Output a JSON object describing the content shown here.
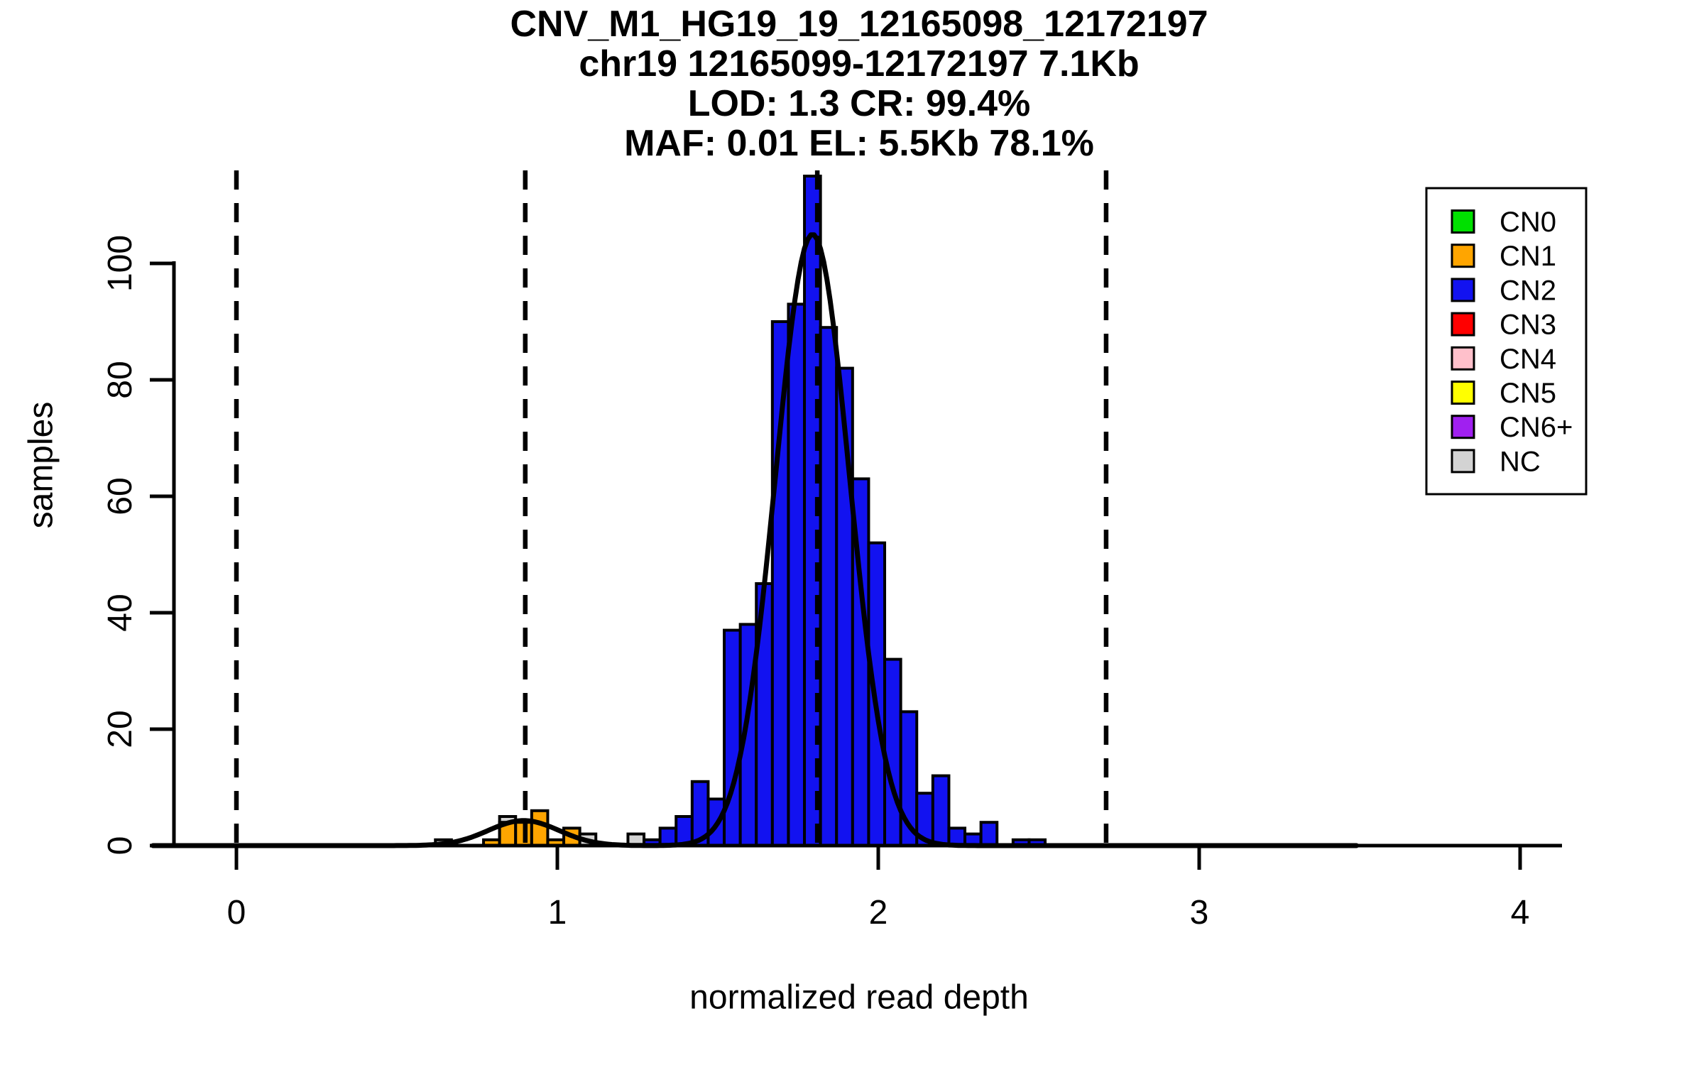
{
  "header": {
    "line1": "CNV_M1_HG19_19_12165098_12172197",
    "line2": "chr19 12165099-12172197 7.1Kb",
    "line3": "LOD: 1.3 CR: 99.4%",
    "line4": "MAF: 0.01 EL: 5.5Kb 78.1%"
  },
  "chart_data": {
    "type": "bar",
    "subtype": "histogram-with-density",
    "title": "CNV_M1_HG19_19_12165098_12172197 | chr19 12165099-12172197 7.1Kb | LOD: 1.3 CR: 99.4% | MAF: 0.01 EL: 5.5Kb 78.1%",
    "xlabel": "normalized read depth",
    "ylabel": "samples",
    "xlim": [
      -0.25,
      4.15
    ],
    "ylim": [
      0,
      116
    ],
    "x_ticks": [
      0,
      1,
      2,
      3,
      4
    ],
    "y_ticks": [
      0,
      20,
      40,
      60,
      80,
      100
    ],
    "grid": "off",
    "legend_position": "top-right",
    "bin_width": 0.05,
    "class_colors": {
      "CN0": "#00E000",
      "CN1": "#FFA500",
      "CN2": "#1212F0",
      "CN3": "#FF0000",
      "CN4": "#FFC0CB",
      "CN5": "#FFFF00",
      "CN6+": "#A020F0",
      "NC": "#D3D3D3"
    },
    "legend_entries": [
      "CN0",
      "CN1",
      "CN2",
      "CN3",
      "CN4",
      "CN5",
      "CN6+",
      "NC"
    ],
    "bars": [
      {
        "class": "NC",
        "x0": 0.62,
        "x1": 0.67,
        "count": 1
      },
      {
        "class": "CN1",
        "x0": 0.77,
        "x1": 0.82,
        "count": 1
      },
      {
        "class": "NC",
        "x0": 0.82,
        "x1": 0.87,
        "count": 5
      },
      {
        "class": "CN1",
        "x0": 0.82,
        "x1": 0.87,
        "count": 4
      },
      {
        "class": "CN1",
        "x0": 0.87,
        "x1": 0.92,
        "count": 4
      },
      {
        "class": "CN1",
        "x0": 0.92,
        "x1": 0.97,
        "count": 6
      },
      {
        "class": "CN1",
        "x0": 0.97,
        "x1": 1.02,
        "count": 1
      },
      {
        "class": "CN1",
        "x0": 1.02,
        "x1": 1.07,
        "count": 3
      },
      {
        "class": "NC",
        "x0": 1.07,
        "x1": 1.12,
        "count": 2
      },
      {
        "class": "NC",
        "x0": 1.22,
        "x1": 1.27,
        "count": 2
      },
      {
        "class": "CN2",
        "x0": 1.27,
        "x1": 1.32,
        "count": 1
      },
      {
        "class": "CN2",
        "x0": 1.32,
        "x1": 1.37,
        "count": 3
      },
      {
        "class": "CN2",
        "x0": 1.37,
        "x1": 1.42,
        "count": 5
      },
      {
        "class": "CN2",
        "x0": 1.42,
        "x1": 1.47,
        "count": 11
      },
      {
        "class": "CN2",
        "x0": 1.47,
        "x1": 1.52,
        "count": 8
      },
      {
        "class": "CN2",
        "x0": 1.52,
        "x1": 1.57,
        "count": 37
      },
      {
        "class": "CN2",
        "x0": 1.57,
        "x1": 1.62,
        "count": 38
      },
      {
        "class": "CN2",
        "x0": 1.62,
        "x1": 1.67,
        "count": 45
      },
      {
        "class": "CN2",
        "x0": 1.67,
        "x1": 1.72,
        "count": 90
      },
      {
        "class": "CN2",
        "x0": 1.72,
        "x1": 1.77,
        "count": 93
      },
      {
        "class": "CN2",
        "x0": 1.77,
        "x1": 1.82,
        "count": 115
      },
      {
        "class": "CN2",
        "x0": 1.82,
        "x1": 1.87,
        "count": 89
      },
      {
        "class": "CN2",
        "x0": 1.87,
        "x1": 1.92,
        "count": 82
      },
      {
        "class": "CN2",
        "x0": 1.92,
        "x1": 1.97,
        "count": 63
      },
      {
        "class": "CN2",
        "x0": 1.97,
        "x1": 2.02,
        "count": 52
      },
      {
        "class": "CN2",
        "x0": 2.02,
        "x1": 2.07,
        "count": 32
      },
      {
        "class": "CN2",
        "x0": 2.07,
        "x1": 2.12,
        "count": 23
      },
      {
        "class": "CN2",
        "x0": 2.12,
        "x1": 2.17,
        "count": 9
      },
      {
        "class": "CN2",
        "x0": 2.17,
        "x1": 2.22,
        "count": 12
      },
      {
        "class": "CN2",
        "x0": 2.22,
        "x1": 2.27,
        "count": 3
      },
      {
        "class": "CN2",
        "x0": 2.27,
        "x1": 2.32,
        "count": 2
      },
      {
        "class": "CN2",
        "x0": 2.32,
        "x1": 2.37,
        "count": 4
      },
      {
        "class": "CN2",
        "x0": 2.42,
        "x1": 2.47,
        "count": 1
      },
      {
        "class": "CN2",
        "x0": 2.47,
        "x1": 2.52,
        "count": 1
      }
    ],
    "density_curves": [
      {
        "name": "CN1-component",
        "mean": 0.895,
        "sd": 0.11,
        "peak": 4.3
      },
      {
        "name": "CN2-component",
        "mean": 1.795,
        "sd": 0.115,
        "peak": 105
      }
    ],
    "curve_range": [
      -0.26,
      3.49
    ],
    "dashed_lines": [
      {
        "label": "CN0",
        "x": 0
      },
      {
        "label": "CN1",
        "x": 0.9
      },
      {
        "label": "CN2",
        "x": 1.81
      },
      {
        "label": "CN3",
        "x": 2.71
      }
    ]
  }
}
